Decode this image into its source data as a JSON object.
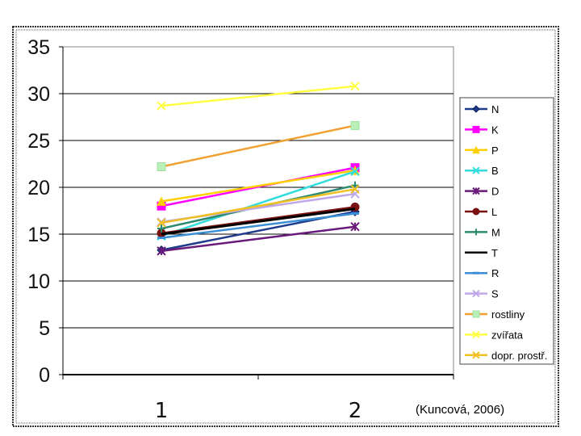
{
  "chart_data": {
    "type": "line",
    "categories": [
      "1",
      "2"
    ],
    "ylim": [
      0,
      35
    ],
    "yticks": [
      "0",
      "5",
      "10",
      "15",
      "20",
      "25",
      "30",
      "35"
    ],
    "grid": "horizontal",
    "legend_position": "right",
    "source_note": "(Kuncová, 2006)",
    "series": [
      {
        "name": "N",
        "values": [
          13.3,
          17.4
        ],
        "color": "#1f3b8c",
        "marker": "diamond"
      },
      {
        "name": "K",
        "values": [
          18.0,
          22.1
        ],
        "color": "#ff00ff",
        "marker": "square"
      },
      {
        "name": "P",
        "values": [
          18.5,
          21.8
        ],
        "color": "#ffd000",
        "marker": "triangle"
      },
      {
        "name": "B",
        "values": [
          14.8,
          21.7
        ],
        "color": "#33dddd",
        "marker": "x"
      },
      {
        "name": "D",
        "values": [
          13.2,
          15.8
        ],
        "color": "#6a1a7a",
        "marker": "star"
      },
      {
        "name": "L",
        "values": [
          15.1,
          17.9
        ],
        "color": "#7a1010",
        "marker": "circle"
      },
      {
        "name": "M",
        "values": [
          15.6,
          20.2
        ],
        "color": "#2d8a6f",
        "marker": "plus"
      },
      {
        "name": "T",
        "values": [
          15.0,
          17.7
        ],
        "color": "#000000",
        "marker": "none"
      },
      {
        "name": "R",
        "values": [
          14.6,
          17.2
        ],
        "color": "#3a8fd6",
        "marker": "dash"
      },
      {
        "name": "S",
        "values": [
          16.3,
          19.3
        ],
        "color": "#c0a8e8",
        "marker": "x"
      },
      {
        "name": "rostliny",
        "values": [
          22.2,
          26.6
        ],
        "color": "#f0a030",
        "marker": "square-light"
      },
      {
        "name": "zvířata",
        "values": [
          28.7,
          30.8
        ],
        "color": "#ffff44",
        "marker": "x"
      },
      {
        "name": "dopr. prostř.",
        "values": [
          16.2,
          19.8
        ],
        "color": "#f0c020",
        "marker": "x"
      }
    ]
  }
}
